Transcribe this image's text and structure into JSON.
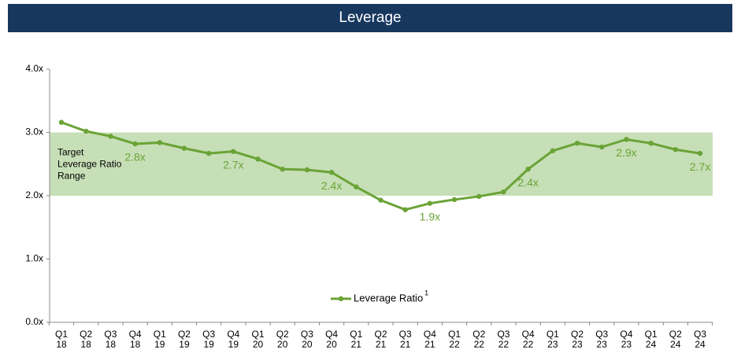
{
  "chart_data": {
    "type": "line",
    "title": "Leverage",
    "categories": [
      [
        "Q1",
        "18"
      ],
      [
        "Q2",
        "18"
      ],
      [
        "Q3",
        "18"
      ],
      [
        "Q4",
        "18"
      ],
      [
        "Q1",
        "19"
      ],
      [
        "Q2",
        "19"
      ],
      [
        "Q3",
        "19"
      ],
      [
        "Q4",
        "19"
      ],
      [
        "Q1",
        "20"
      ],
      [
        "Q2",
        "20"
      ],
      [
        "Q3",
        "20"
      ],
      [
        "Q4",
        "20"
      ],
      [
        "Q1",
        "21"
      ],
      [
        "Q2",
        "21"
      ],
      [
        "Q3",
        "21"
      ],
      [
        "Q4",
        "21"
      ],
      [
        "Q1",
        "22"
      ],
      [
        "Q2",
        "22"
      ],
      [
        "Q3",
        "22"
      ],
      [
        "Q4",
        "22"
      ],
      [
        "Q1",
        "23"
      ],
      [
        "Q2",
        "23"
      ],
      [
        "Q3",
        "23"
      ],
      [
        "Q4",
        "23"
      ],
      [
        "Q1",
        "24"
      ],
      [
        "Q2",
        "24"
      ],
      [
        "Q3",
        "24"
      ]
    ],
    "series": [
      {
        "name": "Leverage Ratio",
        "color": "#6aa336",
        "values": [
          3.16,
          3.02,
          2.94,
          2.82,
          2.84,
          2.75,
          2.67,
          2.7,
          2.58,
          2.42,
          2.41,
          2.37,
          2.14,
          1.93,
          1.78,
          1.88,
          1.94,
          1.99,
          2.06,
          2.42,
          2.71,
          2.83,
          2.77,
          2.89,
          2.83,
          2.73,
          2.67
        ],
        "value_labels": [
          null,
          null,
          null,
          "2.8x",
          null,
          null,
          null,
          "2.7x",
          null,
          null,
          null,
          "2.4x",
          null,
          null,
          null,
          "1.9x",
          null,
          null,
          null,
          "2.4x",
          null,
          null,
          null,
          "2.9x",
          null,
          null,
          "2.7x"
        ]
      }
    ],
    "legend_superscript": "1",
    "band": {
      "range": [
        2,
        3
      ],
      "color": "#c6dfb6",
      "label": [
        "Target",
        "Leverage Ratio",
        "Range"
      ]
    },
    "ylim": [
      0,
      4
    ],
    "yticks": [
      {
        "value": 0,
        "label": "0.0x"
      },
      {
        "value": 1,
        "label": "1.0x"
      },
      {
        "value": 2,
        "label": "2.0x"
      },
      {
        "value": 3,
        "label": "3.0x"
      },
      {
        "value": 4,
        "label": "4.0x"
      }
    ],
    "grid": false
  }
}
